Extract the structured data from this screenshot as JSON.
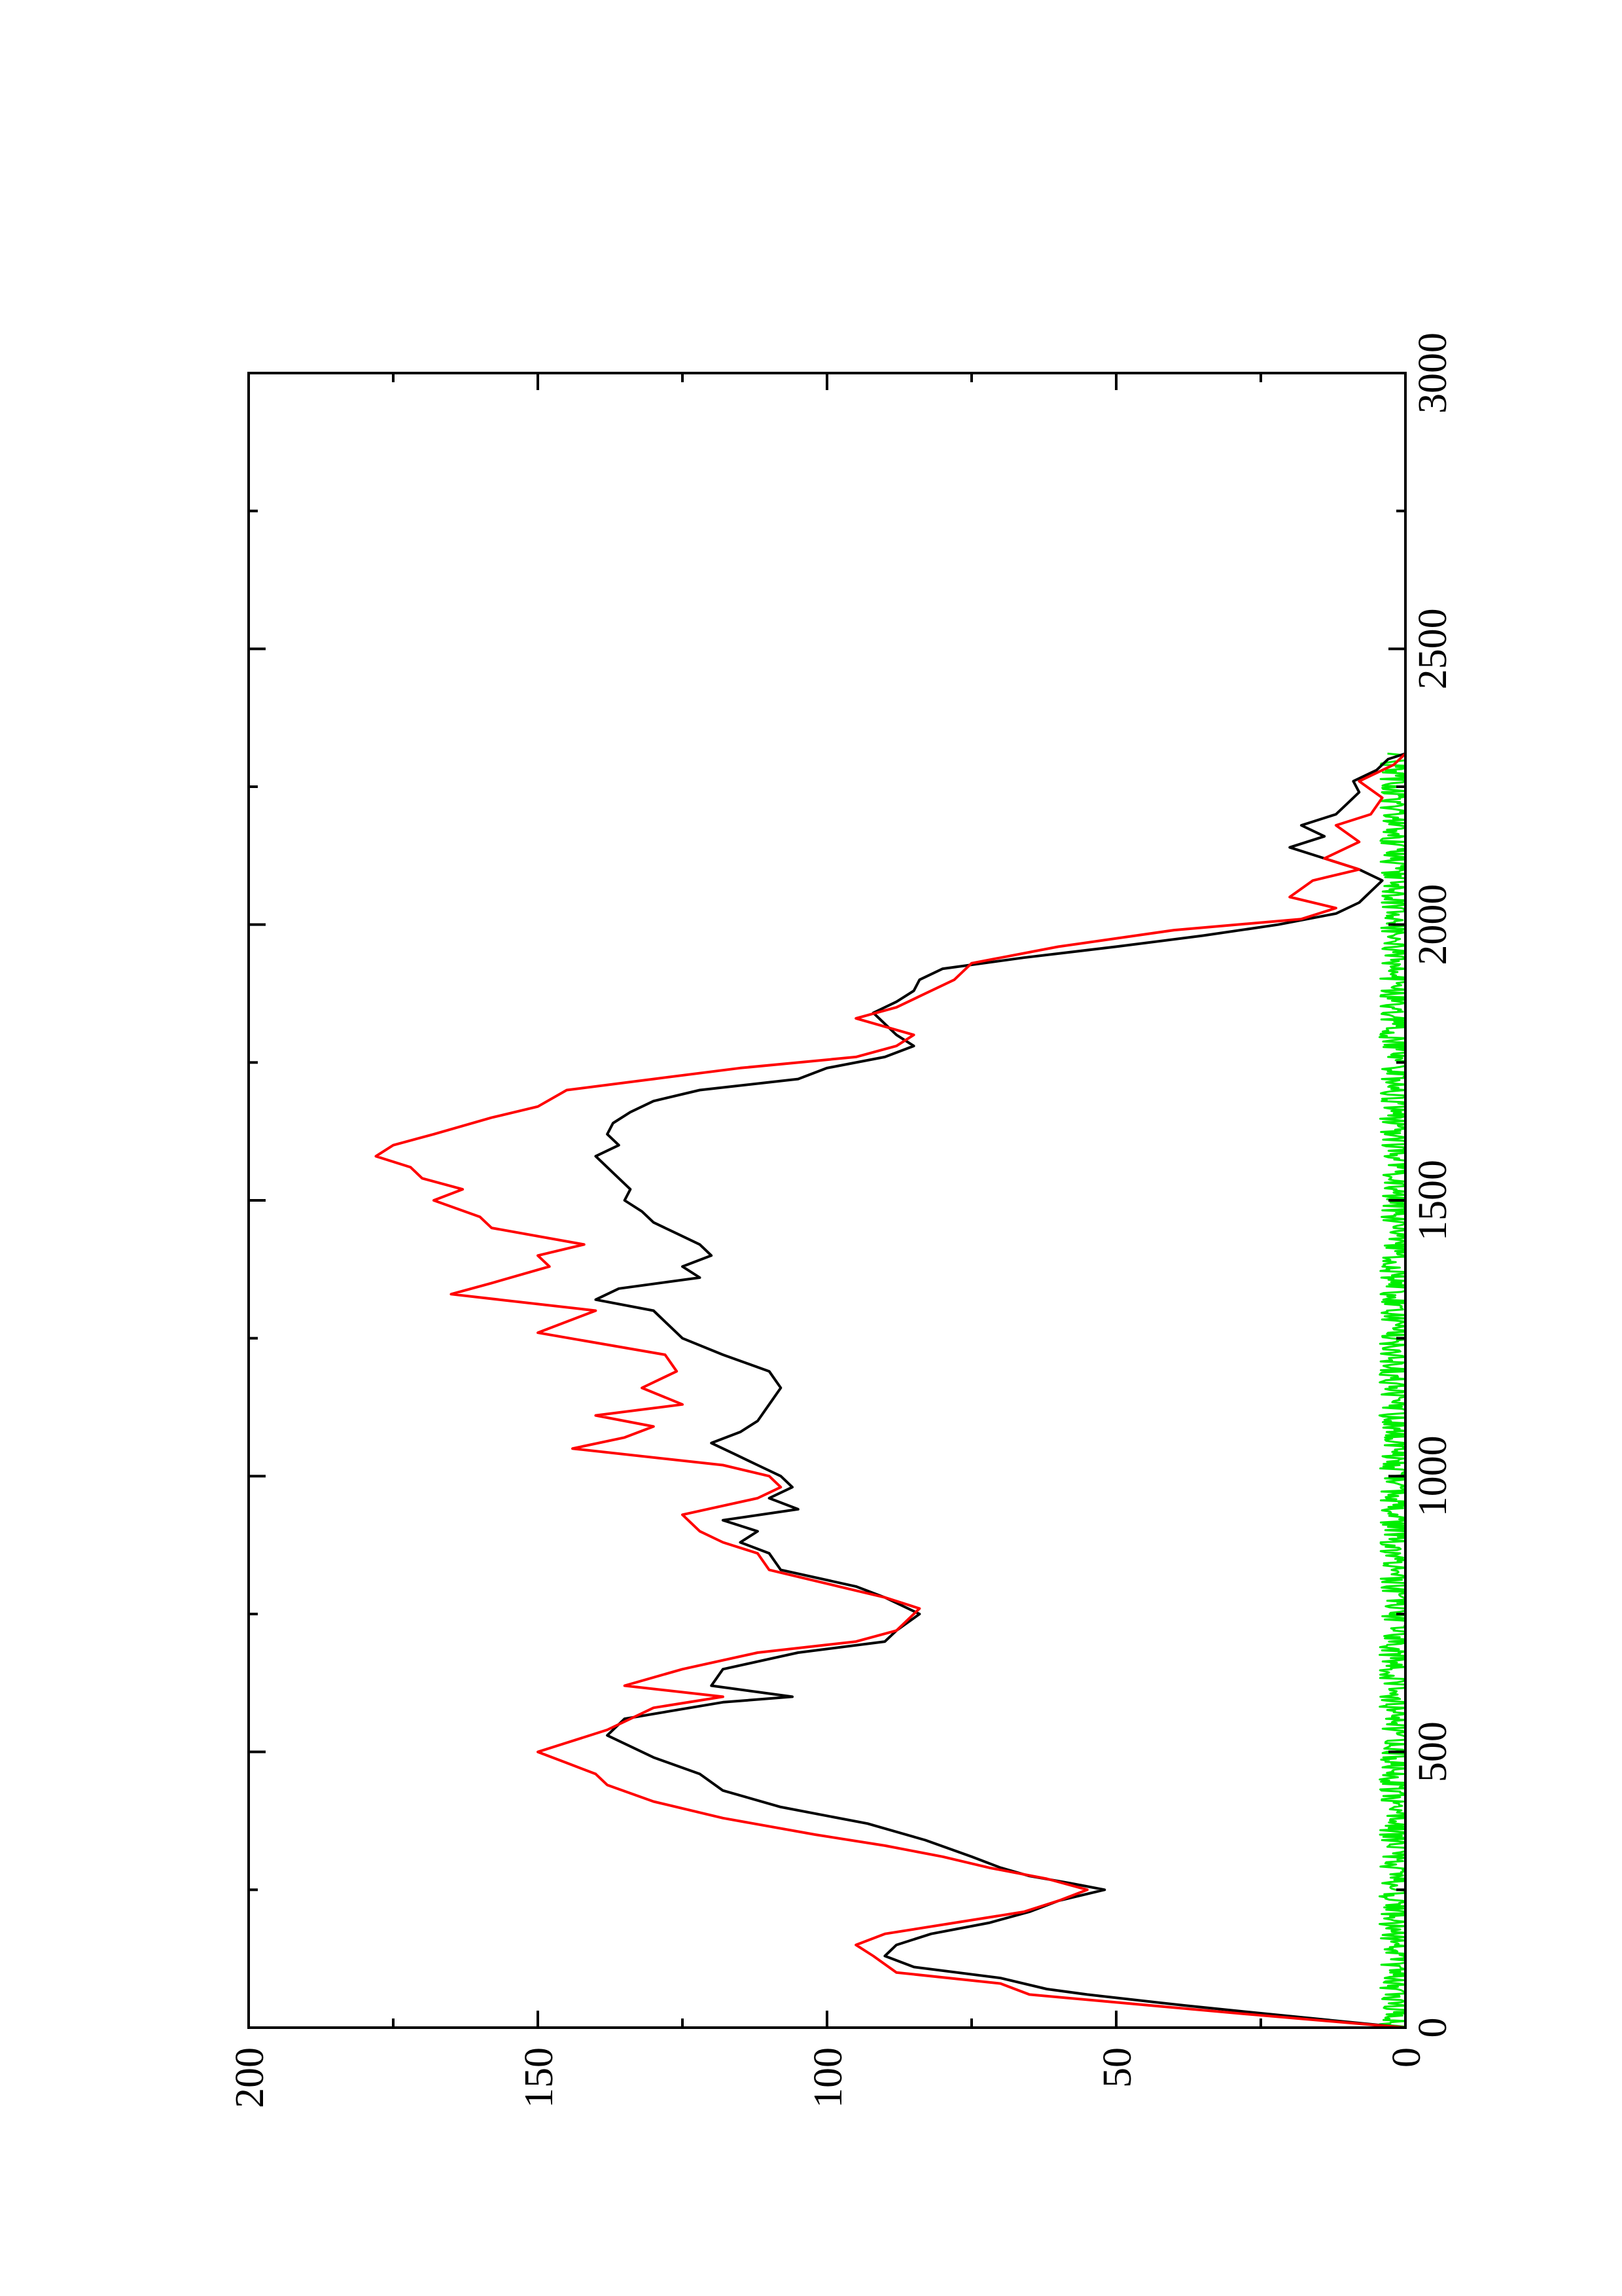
{
  "chart_data": {
    "type": "line",
    "orientation": "rotated-90-ccw",
    "title": "",
    "xlabel": "",
    "ylabel": "",
    "xlim": [
      0,
      3000
    ],
    "ylim": [
      0,
      200
    ],
    "x_ticks": [
      "0",
      "500",
      "1000",
      "1500",
      "2000",
      "2500",
      "3000"
    ],
    "y_ticks": [
      "0",
      "50",
      "100",
      "150",
      "200"
    ],
    "grid": false,
    "legend": "none",
    "series": [
      {
        "color": "#000000",
        "x": [
          0,
          25,
          40,
          60,
          70,
          90,
          110,
          130,
          150,
          170,
          190,
          210,
          230,
          250,
          262,
          275,
          290,
          310,
          340,
          370,
          400,
          430,
          460,
          490,
          530,
          560,
          590,
          600,
          620,
          650,
          680,
          700,
          720,
          750,
          780,
          800,
          830,
          860,
          880,
          900,
          920,
          940,
          960,
          980,
          1000,
          1020,
          1040,
          1060,
          1080,
          1100,
          1130,
          1160,
          1190,
          1220,
          1250,
          1280,
          1300,
          1320,
          1340,
          1360,
          1380,
          1400,
          1420,
          1440,
          1460,
          1480,
          1500,
          1520,
          1540,
          1560,
          1580,
          1600,
          1620,
          1640,
          1660,
          1680,
          1700,
          1720,
          1740,
          1760,
          1780,
          1800,
          1820,
          1840,
          1860,
          1880,
          1900,
          1920,
          1940,
          1960,
          1980,
          2000,
          2020,
          2040,
          2060,
          2080,
          2100,
          2120,
          2140,
          2160,
          2180,
          2200,
          2220,
          2240,
          2260,
          2280,
          2300,
          2310
        ],
        "values": [
          0,
          24,
          38,
          55,
          62,
          70,
          85,
          90,
          88,
          82,
          72,
          65,
          60,
          52,
          58,
          65,
          70,
          75,
          83,
          93,
          108,
          118,
          122,
          130,
          138,
          135,
          118,
          106,
          120,
          118,
          105,
          90,
          88,
          84,
          90,
          95,
          108,
          110,
          115,
          112,
          118,
          105,
          110,
          106,
          108,
          112,
          116,
          120,
          115,
          112,
          110,
          108,
          110,
          118,
          125,
          128,
          130,
          140,
          136,
          122,
          125,
          120,
          122,
          126,
          130,
          132,
          135,
          134,
          136,
          138,
          140,
          136,
          138,
          137,
          134,
          130,
          122,
          105,
          100,
          90,
          85,
          88,
          90,
          92,
          88,
          85,
          84,
          80,
          66,
          50,
          35,
          22,
          12,
          8,
          6,
          4,
          8,
          14,
          20,
          14,
          18,
          12,
          10,
          8,
          9,
          5,
          3,
          0
        ],
        "data_labels": []
      },
      {
        "color": "#ff0000",
        "x": [
          0,
          25,
          60,
          80,
          100,
          130,
          150,
          170,
          190,
          210,
          230,
          250,
          270,
          290,
          310,
          330,
          350,
          380,
          410,
          440,
          460,
          480,
          500,
          540,
          580,
          600,
          620,
          650,
          680,
          700,
          720,
          740,
          760,
          780,
          800,
          830,
          860,
          880,
          900,
          930,
          960,
          980,
          1000,
          1020,
          1050,
          1070,
          1090,
          1110,
          1130,
          1160,
          1190,
          1220,
          1260,
          1300,
          1330,
          1350,
          1380,
          1400,
          1420,
          1450,
          1470,
          1500,
          1520,
          1540,
          1560,
          1580,
          1600,
          1620,
          1650,
          1670,
          1700,
          1720,
          1740,
          1760,
          1780,
          1800,
          1830,
          1850,
          1870,
          1900,
          1930,
          1960,
          1990,
          2010,
          2030,
          2050,
          2080,
          2100,
          2120,
          2150,
          2180,
          2200,
          2230,
          2260,
          2290,
          2310
        ],
        "values": [
          0,
          28,
          65,
          70,
          88,
          92,
          95,
          90,
          78,
          66,
          60,
          55,
          62,
          72,
          80,
          90,
          102,
          118,
          130,
          138,
          140,
          145,
          150,
          138,
          130,
          118,
          135,
          125,
          112,
          95,
          88,
          86,
          84,
          90,
          98,
          110,
          112,
          118,
          122,
          125,
          112,
          108,
          110,
          118,
          144,
          135,
          130,
          140,
          125,
          132,
          126,
          128,
          150,
          140,
          165,
          158,
          148,
          150,
          142,
          158,
          160,
          168,
          163,
          170,
          172,
          178,
          175,
          168,
          158,
          150,
          145,
          130,
          115,
          95,
          88,
          85,
          95,
          88,
          84,
          78,
          75,
          60,
          40,
          18,
          12,
          20,
          16,
          8,
          14,
          8,
          12,
          6,
          4,
          8,
          2,
          0
        ],
        "data_labels": []
      },
      {
        "color": "#00ee00",
        "x_start": 0,
        "x_end": 2310,
        "mean": 1.5,
        "amplitude": 3.0,
        "data_labels": []
      }
    ]
  }
}
